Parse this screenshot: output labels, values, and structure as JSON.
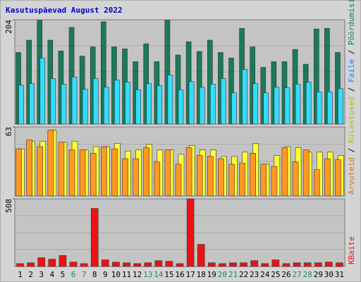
{
  "chart_data": {
    "type": "bar",
    "title": "Kasutuspäevad August 2022",
    "categories": [
      "1",
      "2",
      "3",
      "4",
      "5",
      "6",
      "7",
      "8",
      "9",
      "10",
      "11",
      "12",
      "13",
      "14",
      "15",
      "16",
      "17",
      "18",
      "19",
      "20",
      "21",
      "22",
      "23",
      "24",
      "25",
      "26",
      "27",
      "28",
      "29",
      "30",
      "31"
    ],
    "weekend_color": "#228866",
    "weekend": [
      5,
      6,
      12,
      13,
      19,
      20,
      26,
      27
    ],
    "panels": [
      {
        "ylim": [
          0,
          204
        ],
        "yticks": [
          204
        ],
        "series": [
          {
            "name": "Pöördumisi",
            "color": "#1a7a5a",
            "values": [
              140,
              164,
              203,
              164,
              143,
              189,
              133,
              151,
              200,
              151,
              147,
              122,
              157,
              122,
              203,
              135,
              161,
              142,
              164,
              140,
              129,
              187,
              151,
              111,
              122,
              122,
              146,
              117,
              186,
              187,
              140
            ]
          },
          {
            "name": "Faile",
            "color": "#33ddff",
            "values": [
              76,
              79,
              129,
              89,
              78,
              92,
              68,
              89,
              72,
              86,
              82,
              67,
              79,
              75,
              96,
              67,
              83,
              72,
              78,
              89,
              61,
              107,
              79,
              61,
              72,
              71,
              78,
              82,
              63,
              63,
              69
            ]
          }
        ]
      },
      {
        "ylim": [
          0,
          63
        ],
        "yticks": [
          63
        ],
        "series": [
          {
            "name": "Külastused",
            "color": "#ffff33",
            "values": [
              43,
              50,
              50,
              60,
              49,
              50,
              42,
              45,
              45,
              48,
              41,
              42,
              47,
              42,
              42,
              38,
              46,
              42,
              42,
              36,
              36,
              40,
              48,
              29,
              37,
              45,
              44,
              40,
              40,
              40,
              37
            ]
          },
          {
            "name": "Arvuteid",
            "color": "#ff9922",
            "values": [
              43,
              51,
              45,
              60,
              49,
              42,
              42,
              39,
              45,
              43,
              34,
              34,
              44,
              31,
              42,
              29,
              44,
              37,
              36,
              34,
              29,
              30,
              39,
              29,
              27,
              44,
              31,
              42,
              24,
              34,
              33
            ]
          }
        ]
      },
      {
        "ylim": [
          0,
          508
        ],
        "yticks": [
          508
        ],
        "series": [
          {
            "name": "KBaite",
            "color": "#ee1111",
            "values": [
              22,
              28,
              66,
              55,
              83,
              33,
              22,
              436,
              50,
              33,
              28,
              22,
              28,
              44,
              39,
              22,
              508,
              166,
              28,
              22,
              28,
              28,
              44,
              22,
              50,
              22,
              28,
              28,
              28,
              33,
              28
            ]
          }
        ]
      }
    ]
  }
}
